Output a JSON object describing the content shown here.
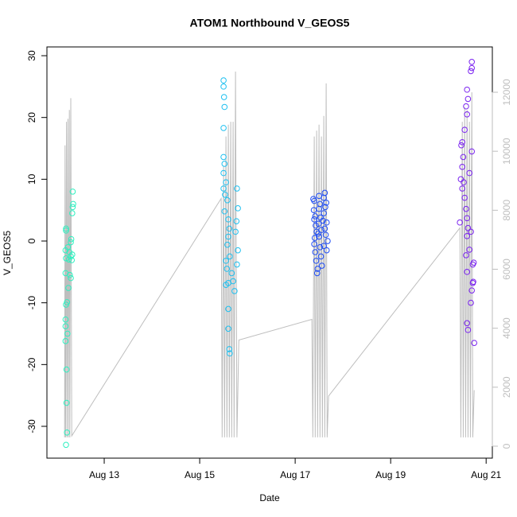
{
  "chart_data": {
    "type": "scatter",
    "title": "ATOM1 Northbound V_GEOS5",
    "x_label": "Date",
    "y_label": "V_GEOS5",
    "xlim": [
      11.8,
      21.13
    ],
    "xticks": [
      {
        "value": 13,
        "label": "Aug 13"
      },
      {
        "value": 15,
        "label": "Aug 15"
      },
      {
        "value": 17,
        "label": "Aug 17"
      },
      {
        "value": 19,
        "label": "Aug 19"
      },
      {
        "value": 21,
        "label": "Aug 21"
      }
    ],
    "ylim": [
      -35.15,
      31.42
    ],
    "yticks": [
      -30,
      -20,
      -10,
      0,
      10,
      20,
      30
    ],
    "y2lim": [
      -405,
      13537
    ],
    "y2ticks": [
      0,
      2000,
      4000,
      6000,
      8000,
      10000,
      12000
    ],
    "series": [
      {
        "color": "#2EF0C0",
        "x": [
          12.2,
          12.2,
          12.19,
          12.2,
          12.19,
          12.2,
          12.19,
          12.19,
          12.19,
          12.21,
          12.21,
          12.22,
          12.2,
          12.26,
          12.27,
          12.3,
          12.28,
          12.25,
          12.22,
          12.23,
          12.3,
          12.31,
          12.33,
          12.34,
          12.35,
          12.34,
          12.33,
          12.32,
          12.3,
          12.24
        ],
        "values": [
          2,
          1.7,
          -1.5,
          -2.8,
          -5.2,
          -10.3,
          -12.7,
          -13.8,
          -16.2,
          -20.8,
          -26.2,
          -31,
          -33,
          -3,
          -1.8,
          -2.5,
          -5.5,
          -7.6,
          -9.9,
          -15,
          -0.2,
          0.3,
          4.5,
          5.5,
          6,
          8,
          -2.2,
          -3.1,
          -6,
          -1
        ]
      },
      {
        "color": "#1EC0F0",
        "x": [
          15.5,
          15.5,
          15.51,
          15.52,
          15.5,
          15.5,
          15.52,
          15.5,
          15.55,
          15.5,
          15.53,
          15.58,
          15.52,
          15.6,
          15.62,
          15.6,
          15.58,
          15.63,
          15.55,
          15.57,
          15.6,
          15.55,
          15.6,
          15.6,
          15.62,
          15.63,
          15.78,
          15.8,
          15.77,
          15.75,
          15.8,
          15.78,
          15.73,
          15.7,
          15.67
        ],
        "values": [
          26,
          25,
          23.3,
          21.7,
          18.3,
          13.6,
          12.5,
          11,
          9.5,
          8.5,
          7.5,
          6.6,
          4.8,
          3.5,
          2,
          0.7,
          -0.6,
          -2.5,
          -3.2,
          -4.5,
          -6.8,
          -7.1,
          -11,
          -14.2,
          -17.5,
          -18.2,
          8.5,
          5.3,
          3.2,
          1.5,
          -1.5,
          -3.8,
          -8.1,
          -6.5,
          -5.2
        ]
      },
      {
        "color": "#1E4CF5",
        "x": [
          17.38,
          17.4,
          17.39,
          17.42,
          17.4,
          17.43,
          17.45,
          17.41,
          17.4,
          17.42,
          17.44,
          17.47,
          17.46,
          17.5,
          17.52,
          17.5,
          17.53,
          17.49,
          17.55,
          17.5,
          17.52,
          17.54,
          17.56,
          17.62,
          17.6,
          17.65,
          17.63,
          17.6,
          17.66,
          17.62,
          17.64,
          17.68,
          17.6,
          17.66,
          17.58,
          17.48
        ],
        "values": [
          6.8,
          6.5,
          5,
          4,
          3.5,
          2.5,
          1.5,
          0.5,
          -0.5,
          -1.8,
          -3.2,
          -4.5,
          -5.2,
          7.3,
          6,
          5.2,
          3.8,
          2.8,
          1.8,
          0.7,
          -1,
          -2.5,
          -4,
          7.8,
          7,
          6.2,
          5.5,
          4.5,
          3,
          2,
          1,
          0,
          -0.8,
          -1.5,
          3.3,
          1.2
        ]
      },
      {
        "color": "#7A22F0",
        "x": [
          20.7,
          20.7,
          20.68,
          20.6,
          20.62,
          20.58,
          20.6,
          20.5,
          20.48,
          20.52,
          20.5,
          20.47,
          20.5,
          20.55,
          20.58,
          20.6,
          20.62,
          20.6,
          20.65,
          20.58,
          20.72,
          20.6,
          20.73,
          20.7,
          20.68,
          20.6,
          20.62,
          20.75,
          20.72,
          20.45,
          20.53,
          20.65,
          20.7,
          20.68,
          20.74,
          20.55
        ],
        "values": [
          29,
          28,
          27.5,
          24.5,
          23,
          21.8,
          20.5,
          16,
          15.5,
          13.6,
          12,
          10,
          8.5,
          7,
          5.2,
          3.7,
          2.1,
          0.8,
          -1.4,
          -2.3,
          -3.8,
          -5,
          -6.6,
          -8,
          -10,
          -13.3,
          -14.4,
          -16.5,
          -6.8,
          3,
          9.5,
          11,
          14.5,
          1.5,
          -3.5,
          18
        ]
      },
      {
        "type": "line",
        "axis": "y2",
        "color": "#bebebe",
        "x": [
          12.17,
          12.18,
          12.19,
          12.21,
          12.22,
          12.24,
          12.25,
          12.27,
          12.28,
          12.3,
          12.32,
          15.45,
          15.47,
          15.5,
          15.52,
          15.55,
          15.57,
          15.6,
          15.62,
          15.65,
          15.67,
          15.7,
          15.72,
          15.75,
          15.78,
          15.82,
          17.35,
          17.37,
          17.4,
          17.42,
          17.45,
          17.47,
          17.5,
          17.52,
          17.55,
          17.57,
          17.6,
          17.62,
          17.65,
          17.67,
          17.7,
          20.45,
          20.47,
          20.5,
          20.52,
          20.55,
          20.57,
          20.6,
          20.62,
          20.65,
          20.67,
          20.7,
          20.72,
          20.75
        ],
        "values": [
          300,
          10200,
          300,
          11000,
          300,
          11100,
          300,
          11400,
          300,
          11800,
          350,
          8400,
          300,
          9500,
          300,
          10500,
          300,
          10900,
          300,
          11000,
          300,
          11000,
          300,
          12700,
          300,
          3600,
          4300,
          300,
          10500,
          300,
          10700,
          300,
          10900,
          300,
          10500,
          300,
          11200,
          300,
          12300,
          300,
          1700,
          7400,
          300,
          11000,
          300,
          11500,
          300,
          11400,
          300,
          11000,
          300,
          12000,
          300,
          1900
        ]
      }
    ]
  }
}
